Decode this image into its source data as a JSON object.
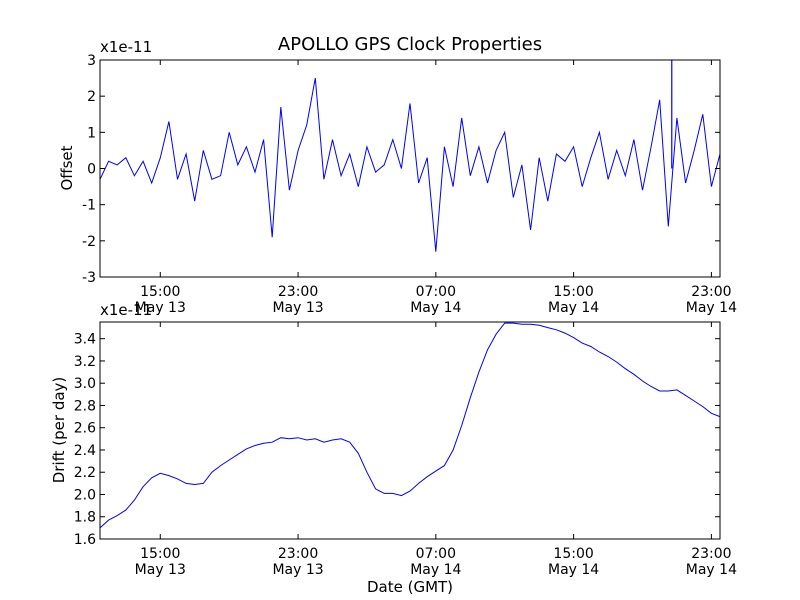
{
  "figure_title": "APOLLO GPS Clock Properties",
  "chart_data": [
    {
      "type": "line",
      "title": "APOLLO GPS Clock Properties",
      "ylabel": "Offset",
      "xlabel": "",
      "y_scale_label": "x1e-11",
      "ylim": [
        -3,
        3
      ],
      "yticks": [
        -3,
        -2,
        -1,
        0,
        1,
        2,
        3
      ],
      "xlim_hours": [
        11.5,
        47.5
      ],
      "xticks": [
        {
          "hour": 15,
          "time": "15:00",
          "date": "May 13"
        },
        {
          "hour": 23,
          "time": "23:00",
          "date": "May 13"
        },
        {
          "hour": 31,
          "time": "07:00",
          "date": "May 14"
        },
        {
          "hour": 39,
          "time": "15:00",
          "date": "May 14"
        },
        {
          "hour": 47,
          "time": "23:00",
          "date": "May 14"
        }
      ],
      "series": [
        {
          "name": "offset",
          "color": "#0000ff",
          "x_hours": [
            11.5,
            12,
            12.5,
            13,
            13.5,
            14,
            14.5,
            15,
            15.5,
            16,
            16.5,
            17,
            17.5,
            18,
            18.5,
            19,
            19.5,
            20,
            20.5,
            21,
            21.5,
            22,
            22.5,
            23,
            23.5,
            24,
            24.5,
            25,
            25.5,
            26,
            26.5,
            27,
            27.5,
            28,
            28.5,
            29,
            29.5,
            30,
            30.5,
            31,
            31.5,
            32,
            32.5,
            33,
            33.5,
            34,
            34.5,
            35,
            35.5,
            36,
            36.5,
            37,
            37.5,
            38,
            38.5,
            39,
            39.5,
            40,
            40.5,
            41,
            41.5,
            42,
            42.5,
            43,
            43.5,
            44,
            44.5,
            45,
            45.5,
            46,
            46.5,
            47,
            47.5
          ],
          "values": [
            -0.3,
            0.2,
            0.1,
            0.3,
            -0.2,
            0.2,
            -0.4,
            0.3,
            1.3,
            -0.3,
            0.4,
            -0.9,
            0.5,
            -0.3,
            -0.2,
            1.0,
            0.1,
            0.6,
            -0.1,
            0.8,
            -1.9,
            1.7,
            -0.6,
            0.5,
            1.2,
            2.5,
            -0.3,
            0.8,
            -0.2,
            0.4,
            -0.5,
            0.6,
            -0.1,
            0.1,
            0.8,
            0.0,
            1.8,
            -0.4,
            0.3,
            -2.3,
            0.6,
            -0.5,
            1.4,
            -0.2,
            0.6,
            -0.4,
            0.5,
            1.0,
            -0.8,
            0.1,
            -1.7,
            0.3,
            -0.9,
            0.4,
            0.2,
            0.6,
            -0.5,
            0.3,
            1.0,
            -0.3,
            0.5,
            -0.2,
            0.8,
            -0.6,
            0.6,
            1.9,
            -1.6,
            1.4,
            -0.4,
            0.5,
            1.5,
            -0.5,
            0.4
          ],
          "peak": {
            "hour": 44.7,
            "value": 3.0
          }
        }
      ]
    },
    {
      "type": "line",
      "title": "",
      "ylabel": "Drift (per day)",
      "xlabel": "Date (GMT)",
      "y_scale_label": "x1e-11",
      "ylim": [
        1.6,
        3.55
      ],
      "yticks": [
        1.6,
        1.8,
        2.0,
        2.2,
        2.4,
        2.6,
        2.8,
        3.0,
        3.2,
        3.4
      ],
      "xlim_hours": [
        11.5,
        47.5
      ],
      "xticks": [
        {
          "hour": 15,
          "time": "15:00",
          "date": "May 13"
        },
        {
          "hour": 23,
          "time": "23:00",
          "date": "May 13"
        },
        {
          "hour": 31,
          "time": "07:00",
          "date": "May 14"
        },
        {
          "hour": 39,
          "time": "15:00",
          "date": "May 14"
        },
        {
          "hour": 47,
          "time": "23:00",
          "date": "May 14"
        }
      ],
      "series": [
        {
          "name": "drift",
          "color": "#0000ff",
          "x_hours": [
            11.5,
            12,
            12.5,
            13,
            13.5,
            14,
            14.5,
            15,
            15.5,
            16,
            16.5,
            17,
            17.5,
            18,
            18.5,
            19,
            19.5,
            20,
            20.5,
            21,
            21.5,
            22,
            22.5,
            23,
            23.5,
            24,
            24.5,
            25,
            25.5,
            26,
            26.5,
            27,
            27.5,
            28,
            28.5,
            29,
            29.5,
            30,
            30.5,
            31,
            31.5,
            32,
            32.5,
            33,
            33.5,
            34,
            34.5,
            35,
            35.5,
            36,
            36.5,
            37,
            37.5,
            38,
            38.5,
            39,
            39.5,
            40,
            40.5,
            41,
            41.5,
            42,
            42.5,
            43,
            43.5,
            44,
            44.5,
            45,
            45.5,
            46,
            46.5,
            47,
            47.5
          ],
          "values": [
            1.7,
            1.77,
            1.81,
            1.86,
            1.95,
            2.07,
            2.15,
            2.19,
            2.17,
            2.14,
            2.1,
            2.09,
            2.1,
            2.2,
            2.26,
            2.31,
            2.36,
            2.41,
            2.44,
            2.46,
            2.47,
            2.51,
            2.5,
            2.51,
            2.49,
            2.5,
            2.47,
            2.49,
            2.5,
            2.47,
            2.37,
            2.2,
            2.05,
            2.01,
            2.01,
            1.99,
            2.03,
            2.1,
            2.16,
            2.21,
            2.26,
            2.4,
            2.62,
            2.87,
            3.1,
            3.3,
            3.44,
            3.54,
            3.54,
            3.53,
            3.53,
            3.52,
            3.5,
            3.48,
            3.45,
            3.41,
            3.36,
            3.33,
            3.28,
            3.24,
            3.19,
            3.13,
            3.08,
            3.02,
            2.97,
            2.93,
            2.93,
            2.94,
            2.89,
            2.84,
            2.79,
            2.73,
            2.7
          ]
        }
      ]
    }
  ]
}
